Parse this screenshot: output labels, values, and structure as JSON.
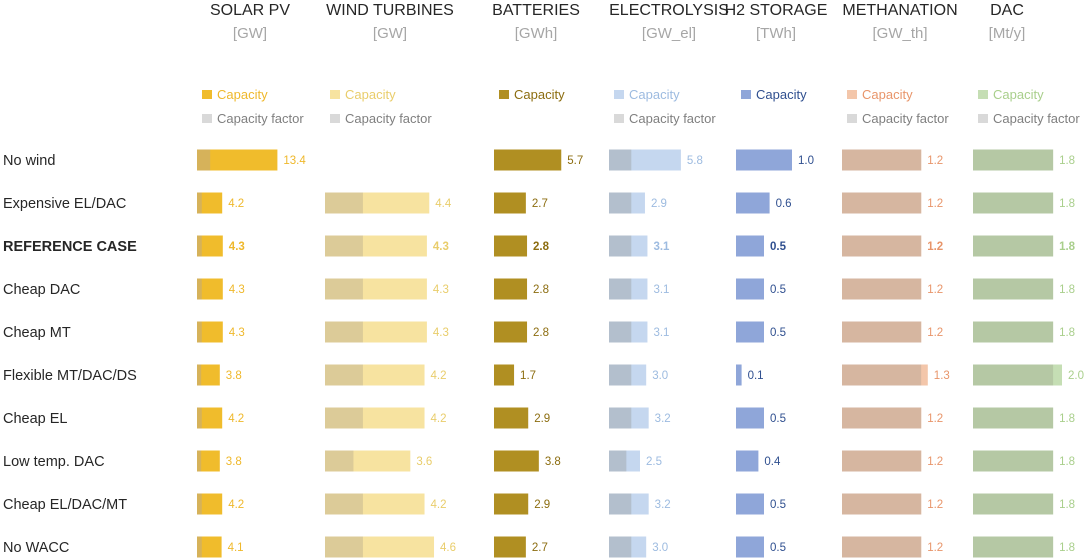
{
  "chart_data": {
    "type": "bar",
    "legend": {
      "capacity_label": "Capacity",
      "cf_label": "Capacity factor"
    },
    "categories": [
      "No wind",
      "Expensive EL/DAC",
      "REFERENCE CASE",
      "Cheap DAC",
      "Cheap MT",
      "Flexible MT/DAC/DS",
      "Cheap EL",
      "Low temp. DAC",
      "Cheap EL/DAC/MT",
      "No WACC"
    ],
    "highlight_category": "REFERENCE CASE",
    "series": [
      {
        "key": "pv",
        "name": "SOLAR PV",
        "unit": "[GW]",
        "color": "#f0bc2c",
        "cf_color": "#d6b25a",
        "value_color": "#efb82b",
        "has_cf_legend": true,
        "values": [
          13.4,
          4.2,
          4.3,
          4.3,
          4.3,
          3.8,
          4.2,
          3.8,
          4.2,
          4.1
        ],
        "cf_values": [
          2.2,
          0.8,
          0.8,
          0.8,
          0.8,
          0.7,
          0.8,
          0.7,
          0.8,
          0.8
        ]
      },
      {
        "key": "wind",
        "name": "WIND TURBINES",
        "unit": "[GW]",
        "color": "#f7e3a0",
        "cf_color": "#dccb98",
        "value_color": "#e9cd6b",
        "has_cf_legend": true,
        "values": [
          null,
          4.4,
          4.3,
          4.3,
          4.3,
          4.2,
          4.2,
          3.6,
          4.2,
          4.6
        ],
        "cf_values": [
          null,
          1.6,
          1.6,
          1.6,
          1.6,
          1.6,
          1.6,
          1.2,
          1.6,
          1.6
        ]
      },
      {
        "key": "bat",
        "name": "BATTERIES",
        "unit": "[GWh]",
        "color": "#b08f22",
        "cf_color": null,
        "value_color": "#8c6d10",
        "has_cf_legend": false,
        "values": [
          5.7,
          2.7,
          2.8,
          2.8,
          2.8,
          1.7,
          2.9,
          3.8,
          2.9,
          2.7
        ],
        "cf_values": [
          null,
          null,
          null,
          null,
          null,
          null,
          null,
          null,
          null,
          null
        ]
      },
      {
        "key": "el",
        "name": "ELECTROLYSIS",
        "unit": "[GW_el]",
        "color": "#c5d7ef",
        "cf_color": "#b3bfcd",
        "value_color": "#9dbbe0",
        "has_cf_legend": true,
        "values": [
          5.8,
          2.9,
          3.1,
          3.1,
          3.1,
          3.0,
          3.2,
          2.5,
          3.2,
          3.0
        ],
        "cf_values": [
          1.8,
          1.8,
          1.8,
          1.8,
          1.8,
          1.8,
          1.8,
          1.4,
          1.8,
          1.8
        ]
      },
      {
        "key": "h2",
        "name": "H2 STORAGE",
        "unit": "[TWh]",
        "color": "#8fa6d9",
        "cf_color": null,
        "value_color": "#2f4f8f",
        "has_cf_legend": false,
        "values": [
          1.0,
          0.6,
          0.5,
          0.5,
          0.5,
          0.1,
          0.5,
          0.4,
          0.5,
          0.5
        ],
        "cf_values": [
          null,
          null,
          null,
          null,
          null,
          null,
          null,
          null,
          null,
          null
        ]
      },
      {
        "key": "mt",
        "name": "METHANATION",
        "unit": "[GW_th]",
        "color": "#f3c6aa",
        "cf_color": "#d6b6a0",
        "value_color": "#e8956a",
        "has_cf_legend": true,
        "values": [
          1.2,
          1.2,
          1.2,
          1.2,
          1.2,
          1.3,
          1.2,
          1.2,
          1.2,
          1.2
        ],
        "cf_values": [
          1.2,
          1.2,
          1.2,
          1.2,
          1.2,
          1.2,
          1.2,
          1.2,
          1.2,
          1.2
        ]
      },
      {
        "key": "dac",
        "name": "DAC",
        "unit": "[Mt/y]",
        "color": "#c5deb4",
        "cf_color": "#b5c8a4",
        "value_color": "#a9cf8c",
        "has_cf_legend": true,
        "values": [
          1.8,
          1.8,
          1.8,
          1.8,
          1.8,
          2.0,
          1.8,
          1.8,
          1.8,
          1.8
        ],
        "cf_values": [
          1.8,
          1.8,
          1.8,
          1.8,
          1.8,
          1.8,
          1.8,
          1.8,
          1.8,
          1.8
        ]
      }
    ]
  }
}
